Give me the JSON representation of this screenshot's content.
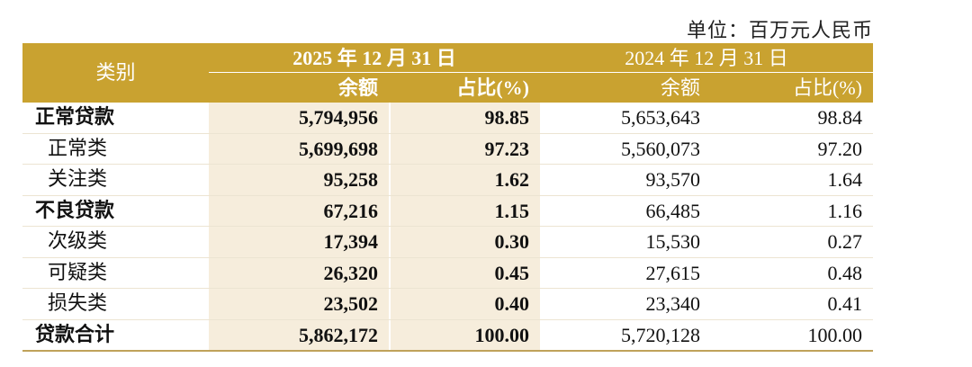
{
  "unit": "单位：百万元人民币",
  "header": {
    "category": "类别",
    "periods": [
      "2025 年 12 月 31 日",
      "2024 年 12 月 31 日"
    ],
    "columns": [
      "余额",
      "占比(%)",
      "余额",
      "占比(%)"
    ]
  },
  "table": {
    "rows": [
      {
        "bold": true,
        "cells": [
          "正常贷款",
          "5,794,956",
          "98.85",
          "5,653,643",
          "98.84"
        ]
      },
      {
        "bold": false,
        "cells": [
          "正常类",
          "5,699,698",
          "97.23",
          "5,560,073",
          "97.20"
        ]
      },
      {
        "bold": false,
        "cells": [
          "关注类",
          "95,258",
          "1.62",
          "93,570",
          "1.64"
        ]
      },
      {
        "bold": true,
        "cells": [
          "不良贷款",
          "67,216",
          "1.15",
          "66,485",
          "1.16"
        ]
      },
      {
        "bold": false,
        "cells": [
          "次级类",
          "17,394",
          "0.30",
          "15,530",
          "0.27"
        ]
      },
      {
        "bold": false,
        "cells": [
          "可疑类",
          "26,320",
          "0.45",
          "27,615",
          "0.48"
        ]
      },
      {
        "bold": false,
        "cells": [
          "损失类",
          "23,502",
          "0.40",
          "23,340",
          "0.41"
        ]
      },
      {
        "bold": true,
        "cells": [
          "贷款合计",
          "5,862,172",
          "100.00",
          "5,720,128",
          "100.00"
        ]
      }
    ]
  }
}
